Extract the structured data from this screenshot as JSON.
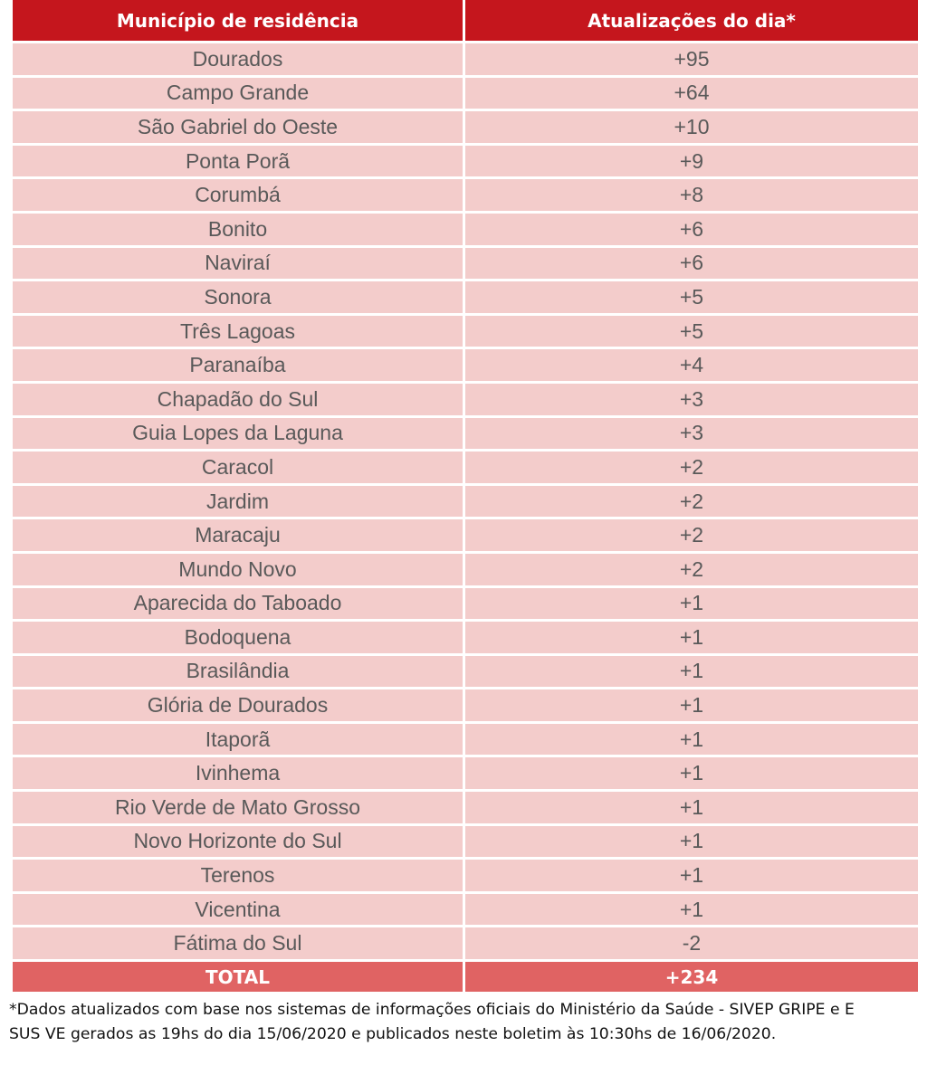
{
  "table": {
    "headers": [
      "Município de residência",
      "Atualizações do dia*"
    ],
    "rows": [
      [
        "Dourados",
        "+95"
      ],
      [
        "Campo Grande",
        "+64"
      ],
      [
        "São Gabriel do Oeste",
        "+10"
      ],
      [
        "Ponta Porã",
        "+9"
      ],
      [
        "Corumbá",
        "+8"
      ],
      [
        "Bonito",
        "+6"
      ],
      [
        "Naviraí",
        "+6"
      ],
      [
        "Sonora",
        "+5"
      ],
      [
        "Três Lagoas",
        "+5"
      ],
      [
        "Paranaíba",
        "+4"
      ],
      [
        "Chapadão do Sul",
        "+3"
      ],
      [
        "Guia Lopes da Laguna",
        "+3"
      ],
      [
        "Caracol",
        "+2"
      ],
      [
        "Jardim",
        "+2"
      ],
      [
        "Maracaju",
        "+2"
      ],
      [
        "Mundo Novo",
        "+2"
      ],
      [
        "Aparecida do Taboado",
        "+1"
      ],
      [
        "Bodoquena",
        "+1"
      ],
      [
        "Brasilândia",
        "+1"
      ],
      [
        "Glória de Dourados",
        "+1"
      ],
      [
        "Itaporã",
        "+1"
      ],
      [
        "Ivinhema",
        "+1"
      ],
      [
        "Rio Verde de Mato Grosso",
        "+1"
      ],
      [
        "Novo Horizonte do Sul",
        "+1"
      ],
      [
        "Terenos",
        "+1"
      ],
      [
        "Vicentina",
        "+1"
      ],
      [
        "Fátima do Sul",
        "-2"
      ]
    ],
    "total": [
      "TOTAL",
      "+234"
    ]
  },
  "footnote": {
    "line1": "*Dados atualizados com base nos sistemas de informações oficiais do Ministério da Saúde - SIVEP GRIPE e E",
    "line2": "SUS VE gerados as 19hs do dia 15/06/2020 e publicados neste boletim às 10:30hs de 16/06/2020."
  },
  "colors": {
    "header_bg": "#c5161d",
    "row_bg": "#f3cccb",
    "total_bg": "#e06363",
    "row_text": "#595959"
  }
}
